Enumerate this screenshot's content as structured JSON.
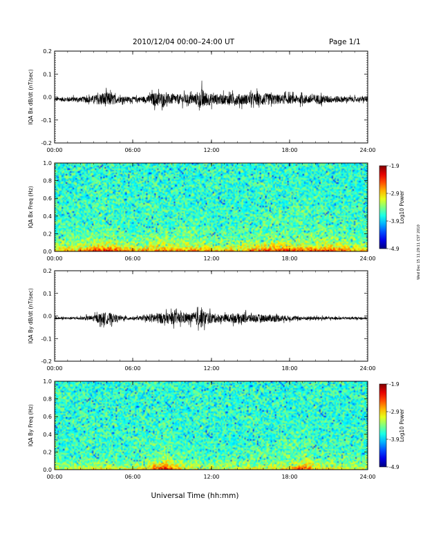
{
  "header": {
    "title": "2010/12/04  00:00–24:00 UT",
    "page": "Page 1/1"
  },
  "footer": {
    "xlabel": "Universal Time (hh:mm)",
    "stamp": "Wed Dec 15 11:29:11 CST 2010"
  },
  "time_ticks": [
    "00:00",
    "06:00",
    "12:00",
    "18:00",
    "24:00"
  ],
  "colors": {
    "line": "#000000",
    "axis": "#000000"
  },
  "chart_data": [
    {
      "type": "line",
      "ylabel": "IQA Bx dB/dt (nT/sec)",
      "xlim": [
        0,
        24
      ],
      "ylim": [
        -0.2,
        0.2
      ],
      "yticks": [
        "0.2",
        "0.1",
        "0.0",
        "-0.1",
        "-0.2"
      ],
      "baseline": -0.01,
      "envelope": [
        [
          0,
          0.015
        ],
        [
          1,
          0.02
        ],
        [
          2,
          0.02
        ],
        [
          3,
          0.03
        ],
        [
          3.5,
          0.05
        ],
        [
          4,
          0.06
        ],
        [
          4.5,
          0.04
        ],
        [
          5,
          0.025
        ],
        [
          6,
          0.02
        ],
        [
          7,
          0.025
        ],
        [
          7.5,
          0.05
        ],
        [
          8,
          0.06
        ],
        [
          8.5,
          0.045
        ],
        [
          9,
          0.04
        ],
        [
          10,
          0.04
        ],
        [
          10.5,
          0.04
        ],
        [
          11,
          0.05
        ],
        [
          11.3,
          0.09
        ],
        [
          11.5,
          0.06
        ],
        [
          12,
          0.045
        ],
        [
          13,
          0.04
        ],
        [
          14,
          0.045
        ],
        [
          15,
          0.04
        ],
        [
          15.5,
          0.05
        ],
        [
          16,
          0.05
        ],
        [
          17,
          0.04
        ],
        [
          18,
          0.035
        ],
        [
          19,
          0.035
        ],
        [
          20,
          0.04
        ],
        [
          21,
          0.03
        ],
        [
          22,
          0.025
        ],
        [
          23,
          0.02
        ],
        [
          24,
          0.02
        ]
      ]
    },
    {
      "type": "heatmap",
      "ylabel": "IQA Bx Freq (Hz)",
      "xlim": [
        0,
        24
      ],
      "ylim": [
        0.0,
        1.0
      ],
      "yticks": [
        "1.0",
        "0.8",
        "0.6",
        "0.4",
        "0.2",
        "0.0"
      ],
      "colorbar": {
        "label": "Log10 Power",
        "range": [
          -4.9,
          -1.9
        ],
        "ticks": [
          "-1.9",
          "-2.9",
          "-3.9",
          "-4.9"
        ]
      },
      "activity": [
        [
          0,
          0.5
        ],
        [
          2,
          0.6
        ],
        [
          3,
          0.8
        ],
        [
          4,
          1.0
        ],
        [
          5,
          0.7
        ],
        [
          6,
          0.55
        ],
        [
          7,
          0.6
        ],
        [
          8,
          0.75
        ],
        [
          9,
          0.7
        ],
        [
          10,
          0.6
        ],
        [
          11,
          0.7
        ],
        [
          12,
          0.5
        ],
        [
          14,
          0.55
        ],
        [
          16,
          0.75
        ],
        [
          17,
          0.9
        ],
        [
          18,
          0.85
        ],
        [
          19,
          0.8
        ],
        [
          20,
          0.75
        ],
        [
          21,
          0.8
        ],
        [
          22,
          0.7
        ],
        [
          23,
          0.55
        ],
        [
          24,
          0.5
        ]
      ]
    },
    {
      "type": "line",
      "ylabel": "IQA By dB/dt (nT/sec)",
      "xlim": [
        0,
        24
      ],
      "ylim": [
        -0.2,
        0.2
      ],
      "yticks": [
        "0.2",
        "0.1",
        "0.0",
        "-0.1",
        "-0.2"
      ],
      "baseline": -0.01,
      "envelope": [
        [
          0,
          0.01
        ],
        [
          1,
          0.01
        ],
        [
          2,
          0.012
        ],
        [
          3,
          0.025
        ],
        [
          3.5,
          0.04
        ],
        [
          4,
          0.05
        ],
        [
          4.5,
          0.035
        ],
        [
          5,
          0.02
        ],
        [
          6,
          0.012
        ],
        [
          7,
          0.02
        ],
        [
          7.5,
          0.04
        ],
        [
          8,
          0.045
        ],
        [
          8.5,
          0.04
        ],
        [
          9,
          0.05
        ],
        [
          9.5,
          0.045
        ],
        [
          10,
          0.04
        ],
        [
          10.5,
          0.04
        ],
        [
          11,
          0.06
        ],
        [
          11.2,
          0.08
        ],
        [
          11.5,
          0.06
        ],
        [
          12,
          0.04
        ],
        [
          13,
          0.03
        ],
        [
          14,
          0.04
        ],
        [
          15,
          0.035
        ],
        [
          16,
          0.03
        ],
        [
          17,
          0.03
        ],
        [
          18,
          0.02
        ],
        [
          19,
          0.015
        ],
        [
          20,
          0.015
        ],
        [
          21,
          0.012
        ],
        [
          22,
          0.01
        ],
        [
          23,
          0.01
        ],
        [
          24,
          0.01
        ]
      ]
    },
    {
      "type": "heatmap",
      "ylabel": "IQA By Freq (Hz)",
      "xlim": [
        0,
        24
      ],
      "ylim": [
        0.0,
        1.0
      ],
      "yticks": [
        "1.0",
        "0.8",
        "0.6",
        "0.4",
        "0.2",
        "0.0"
      ],
      "colorbar": {
        "label": "Log10 Power",
        "range": [
          -4.9,
          -1.9
        ],
        "ticks": [
          "-1.9",
          "-2.9",
          "-3.9",
          "-4.9"
        ]
      },
      "activity": [
        [
          0,
          0.3
        ],
        [
          2,
          0.35
        ],
        [
          4,
          0.4
        ],
        [
          6,
          0.35
        ],
        [
          7,
          0.45
        ],
        [
          8,
          0.9
        ],
        [
          8.5,
          1.0
        ],
        [
          9,
          0.6
        ],
        [
          10,
          0.4
        ],
        [
          12,
          0.35
        ],
        [
          14,
          0.35
        ],
        [
          16,
          0.4
        ],
        [
          18,
          0.5
        ],
        [
          19,
          0.85
        ],
        [
          19.5,
          0.75
        ],
        [
          20,
          0.5
        ],
        [
          22,
          0.4
        ],
        [
          24,
          0.35
        ]
      ]
    }
  ]
}
